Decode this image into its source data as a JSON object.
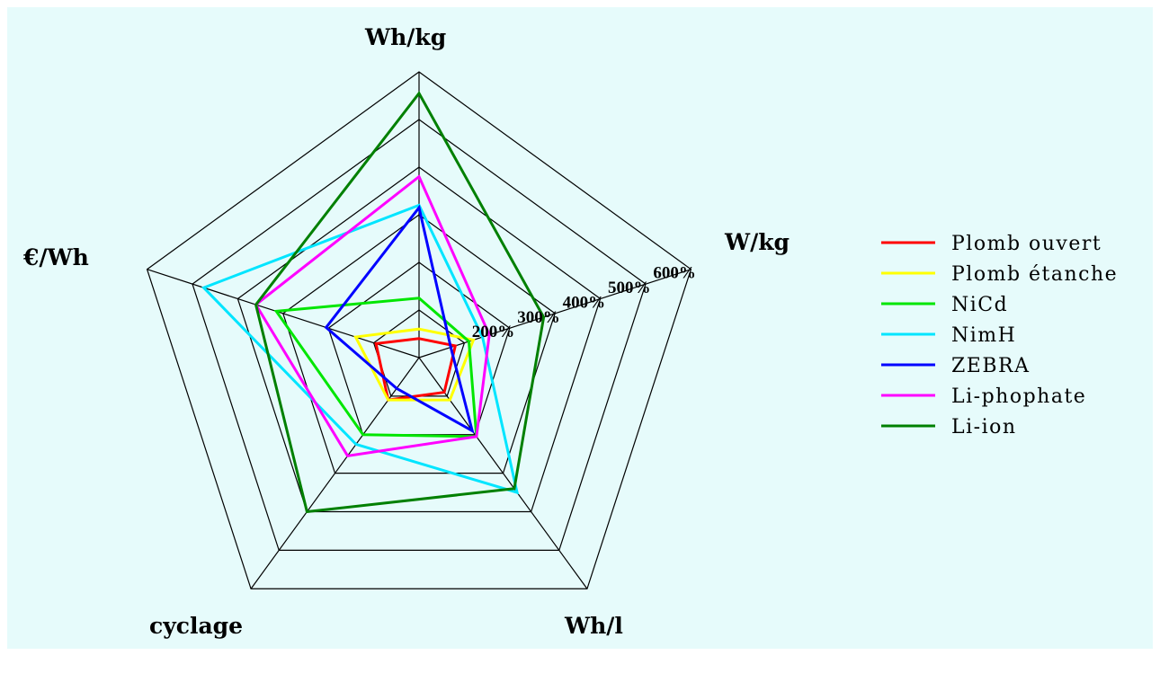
{
  "chart_data": {
    "type": "radar",
    "axes": [
      "Wh/kg",
      "W/kg",
      "Wh/l",
      "cyclage",
      "€/Wh"
    ],
    "rings": [
      100,
      200,
      300,
      400,
      500,
      600
    ],
    "tick_labels": [
      "200%",
      "300%",
      "400%",
      "500%",
      "600%"
    ],
    "series": [
      {
        "name": "Plomb ouvert",
        "color": "#ff0000",
        "values": [
          40,
          80,
          90,
          110,
          95
        ]
      },
      {
        "name": "Plomb étanche",
        "color": "#ffff00",
        "values": [
          60,
          120,
          110,
          110,
          140
        ]
      },
      {
        "name": "NiCd",
        "color": "#00e600",
        "values": [
          125,
          110,
          205,
          200,
          315
        ]
      },
      {
        "name": "NimH",
        "color": "#00e5ff",
        "values": [
          320,
          140,
          350,
          225,
          475
        ]
      },
      {
        "name": "ZEBRA",
        "color": "#0000ff",
        "values": [
          315,
          70,
          190,
          80,
          205
        ]
      },
      {
        "name": "Li-phophate",
        "color": "#ff00ff",
        "values": [
          380,
          155,
          205,
          255,
          360
        ]
      },
      {
        "name": "Li-ion",
        "color": "#008000",
        "values": [
          555,
          275,
          340,
          400,
          360
        ]
      }
    ]
  }
}
